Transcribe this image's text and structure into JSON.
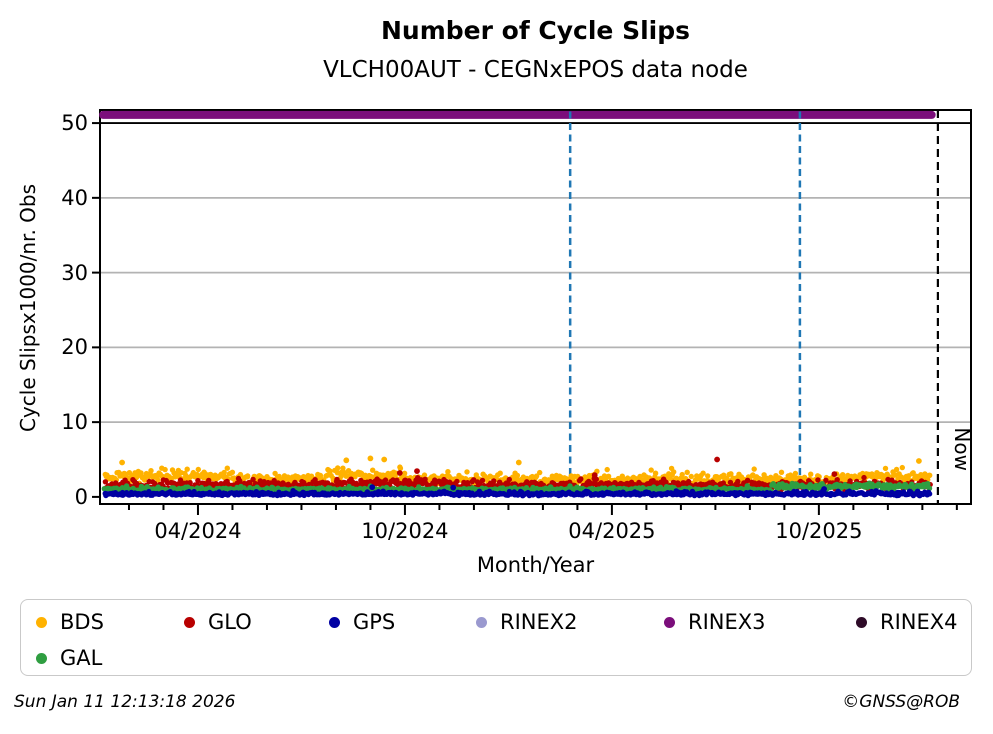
{
  "header": {
    "title": "Number of Cycle Slips",
    "subtitle": "VLCH00AUT - CEGNxEPOS data node"
  },
  "chart_data": {
    "type": "scatter",
    "title": "Number of Cycle Slips",
    "subtitle": "VLCH00AUT - CEGNxEPOS data node",
    "xlabel": "Month/Year",
    "ylabel": "Cycle Slipsx1000/nr. Obs",
    "ylim": [
      -0.95,
      51.75
    ],
    "yticks": [
      0,
      10,
      20,
      30,
      40,
      50
    ],
    "grid": {
      "y_values": [
        10,
        20,
        30,
        40
      ],
      "color": "#B3B3B3"
    },
    "threshold_line": {
      "value": 50,
      "color": "#000000"
    },
    "x_axis": {
      "unit": "months_since_2024_04",
      "m_min": -2.84,
      "m_max": 22.41,
      "minor_tick_step": 1,
      "major_ticks": [
        {
          "m": 0,
          "label": "04/2024"
        },
        {
          "m": 6,
          "label": "10/2024"
        },
        {
          "m": 12,
          "label": "04/2025"
        },
        {
          "m": 18,
          "label": "10/2025"
        }
      ]
    },
    "data_range": {
      "m_start": -2.7,
      "m_end": 21.25,
      "step_m": 0.0335
    },
    "series": [
      {
        "name": "BDS",
        "color": "#FFB200",
        "kind": "scatter",
        "base": 2.25,
        "noise": 0.75,
        "min": 1.05,
        "spread": 1.1,
        "bumps": [
          [
            -2.7,
            1.0,
            0.55
          ],
          [
            3.6,
            5.9,
            0.75
          ],
          [
            18.6,
            21.25,
            0.55
          ]
        ],
        "outliers": [
          [
            -2.2,
            4.6
          ],
          [
            4.3,
            4.9
          ],
          [
            5.0,
            5.15
          ],
          [
            5.4,
            5.0
          ],
          [
            9.3,
            4.6
          ],
          [
            20.9,
            4.8
          ]
        ]
      },
      {
        "name": "GLO",
        "color": "#B80000",
        "kind": "scatter",
        "base": 1.45,
        "noise": 0.55,
        "min": 0.5,
        "spread": 0.8,
        "bumps": [
          [
            4.8,
            7.3,
            0.45
          ]
        ],
        "outliers": [
          [
            15.05,
            5.0
          ],
          [
            6.35,
            3.45
          ],
          [
            5.85,
            3.2
          ],
          [
            11.5,
            2.9
          ],
          [
            18.45,
            3.05
          ]
        ]
      },
      {
        "name": "GPS",
        "color": "#0000A3",
        "kind": "scatter",
        "base": 0.36,
        "noise": 0.22,
        "min": 0.06,
        "spread": 0.35,
        "bumps": [],
        "outliers": [
          [
            7.4,
            1.25
          ],
          [
            5.05,
            1.3
          ],
          [
            18.15,
            1.05
          ]
        ]
      },
      {
        "name": "RINEX2",
        "color": "#9A99CF",
        "kind": "none"
      },
      {
        "name": "RINEX3",
        "color": "#7B0E7B",
        "kind": "band",
        "value": 51.1,
        "m_start": -2.75,
        "m_end": 21.27
      },
      {
        "name": "RINEX4",
        "color": "#2E0B28",
        "kind": "none"
      },
      {
        "name": "GAL",
        "color": "#2F9E41",
        "kind": "scatter",
        "base": 0.95,
        "noise": 0.28,
        "min": 0.45,
        "spread": 0.3,
        "bumps": [
          [
            16.6,
            21.25,
            0.65
          ]
        ],
        "outliers": []
      }
    ],
    "draw_order": [
      "BDS",
      "GLO",
      "GAL",
      "GPS"
    ],
    "vlines": [
      {
        "m": 10.79,
        "color": "#1F77B4"
      },
      {
        "m": 17.45,
        "color": "#1F77B4"
      }
    ],
    "now_line": {
      "m": 21.45,
      "color": "#000000",
      "label": "Now"
    }
  },
  "legend": {
    "items": [
      {
        "label": "BDS",
        "color": "#FFB200"
      },
      {
        "label": "GLO",
        "color": "#B80000"
      },
      {
        "label": "GPS",
        "color": "#0000A3"
      },
      {
        "label": "RINEX2",
        "color": "#9A99CF"
      },
      {
        "label": "RINEX3",
        "color": "#7B0E7B"
      },
      {
        "label": "RINEX4",
        "color": "#2E0B28"
      },
      {
        "label": "GAL",
        "color": "#2F9E41"
      }
    ]
  },
  "footer": {
    "timestamp": "Sun Jan 11 12:13:18 2026",
    "copyright": "©GNSS@ROB"
  }
}
